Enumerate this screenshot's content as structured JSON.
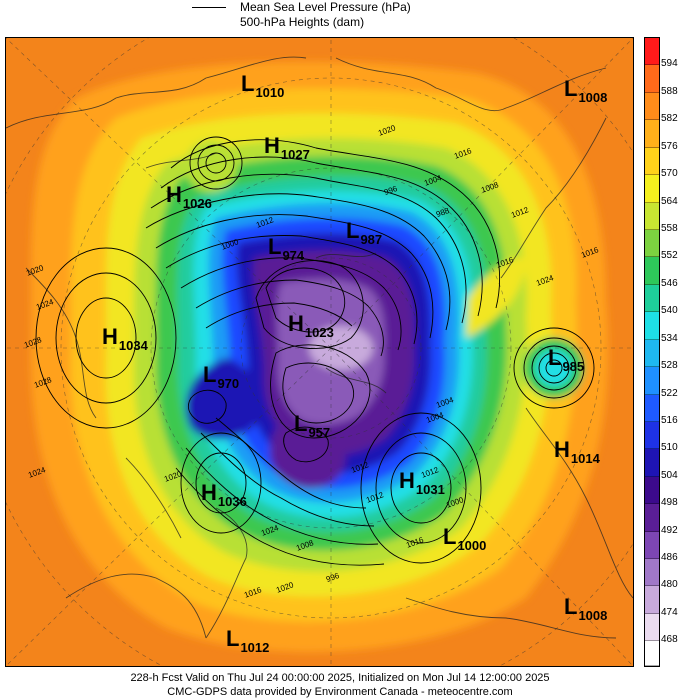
{
  "legend": {
    "line_label": "Mean Sea Level Pressure (hPa)",
    "fill_label": "500-hPa Heights (dam)"
  },
  "colorbar": {
    "levels": [
      "594",
      "588",
      "582",
      "576",
      "570",
      "564",
      "558",
      "552",
      "546",
      "540",
      "534",
      "528",
      "522",
      "516",
      "510",
      "504",
      "498",
      "492",
      "486",
      "480",
      "474",
      "468"
    ],
    "colors": [
      "#ff1a1a",
      "#ff6a1a",
      "#ff8c1a",
      "#ffb01a",
      "#ffd21a",
      "#f5f01e",
      "#c8e632",
      "#7cd240",
      "#2ec85a",
      "#1ecf9a",
      "#1ee0e6",
      "#1eb8f0",
      "#1e90ff",
      "#1e5aff",
      "#1e32e6",
      "#1e14b4",
      "#3c0a8c",
      "#5a1e96",
      "#7d46b4",
      "#a078c8",
      "#c8aadc",
      "#ebdcf0"
    ]
  },
  "centers": [
    {
      "type": "L",
      "value": "1010"
    },
    {
      "type": "L",
      "value": "1008"
    },
    {
      "type": "H",
      "value": "1027"
    },
    {
      "type": "H",
      "value": "1026"
    },
    {
      "type": "L",
      "value": "974"
    },
    {
      "type": "L",
      "value": "987"
    },
    {
      "type": "H",
      "value": "1034"
    },
    {
      "type": "H",
      "value": "1023"
    },
    {
      "type": "L",
      "value": "985"
    },
    {
      "type": "L",
      "value": "970"
    },
    {
      "type": "L",
      "value": "957"
    },
    {
      "type": "H",
      "value": "1014"
    },
    {
      "type": "H",
      "value": "1031"
    },
    {
      "type": "H",
      "value": "1036"
    },
    {
      "type": "L",
      "value": "1000"
    },
    {
      "type": "L",
      "value": "1008"
    },
    {
      "type": "L",
      "value": "1012"
    }
  ],
  "isobar_labels": [
    "1020",
    "1016",
    "1004",
    "996",
    "988",
    "1008",
    "1012",
    "1016",
    "1020",
    "1024",
    "1028",
    "1024",
    "1016",
    "1012",
    "1000",
    "1024",
    "1020",
    "1012",
    "1004",
    "1000",
    "1016",
    "1020",
    "1012",
    "1008",
    "996",
    "1004",
    "1012",
    "1024",
    "1028",
    "1016"
  ],
  "footer": {
    "line1": "228-h Fcst Valid on Thu Jul 24 00:00:00 2025, Initialized on Mon Jul 14 12:00:00 2025",
    "line2": "CMC-GDPS data provided by Environment Canada - meteocentre.com"
  }
}
